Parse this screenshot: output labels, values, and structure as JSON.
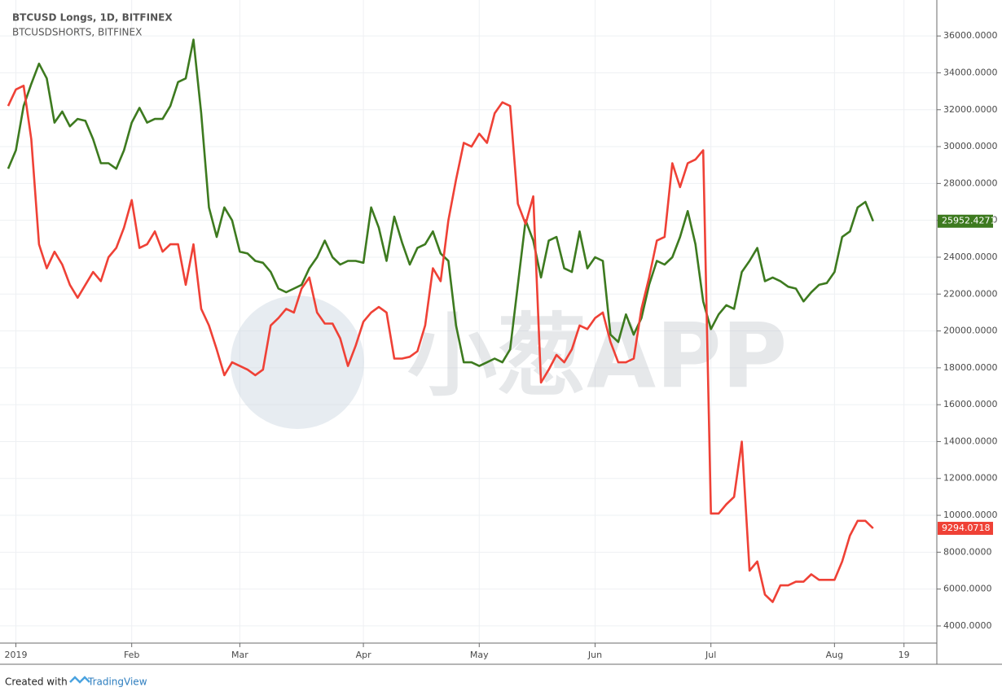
{
  "chart_data": {
    "type": "line",
    "watermark": "小葱APP",
    "footer": {
      "prefix": "Created with",
      "brand": "TradingView"
    },
    "categories": [
      null,
      "2019",
      null,
      null,
      null,
      null,
      null,
      null,
      null,
      null,
      null,
      null,
      null,
      null,
      null,
      null,
      "Feb",
      null,
      null,
      null,
      null,
      null,
      null,
      null,
      null,
      null,
      null,
      null,
      null,
      null,
      "Mar",
      null,
      null,
      null,
      null,
      null,
      null,
      null,
      null,
      null,
      null,
      null,
      null,
      null,
      null,
      null,
      "Apr",
      null,
      null,
      null,
      null,
      null,
      null,
      null,
      null,
      null,
      null,
      null,
      null,
      null,
      null,
      "May",
      null,
      null,
      null,
      null,
      null,
      null,
      null,
      null,
      null,
      null,
      null,
      null,
      null,
      null,
      "Jun",
      null,
      null,
      null,
      null,
      null,
      null,
      null,
      null,
      null,
      null,
      null,
      null,
      null,
      null,
      "Jul",
      null,
      null,
      null,
      null,
      null,
      null,
      null,
      null,
      null,
      null,
      null,
      null,
      null,
      null,
      null,
      "Aug",
      null,
      null,
      null,
      null,
      null,
      null,
      null,
      null,
      "19",
      null,
      null,
      null
    ],
    "series": [
      {
        "name": "BTCUSD Longs, 1D, BITFINEX",
        "color": "#3d7a1f",
        "values": [
          28800,
          29800,
          32200,
          33400,
          34500,
          33700,
          31300,
          31900,
          31100,
          31500,
          31400,
          30400,
          29100,
          29100,
          28800,
          29800,
          31300,
          32100,
          31300,
          31500,
          31500,
          32200,
          33500,
          33700,
          35800,
          31800,
          26700,
          25100,
          26700,
          26000,
          24300,
          24200,
          23800,
          23700,
          23200,
          22300,
          22100,
          22300,
          22500,
          23400,
          24000,
          24900,
          24000,
          23600,
          23800,
          23800,
          23700,
          26700,
          25600,
          23800,
          26200,
          24800,
          23600,
          24500,
          24700,
          25400,
          24200,
          23800,
          20300,
          18300,
          18300,
          18100,
          18300,
          18500,
          18300,
          19000,
          22500,
          26000,
          24900,
          22900,
          24900,
          25100,
          23400,
          23200,
          25400,
          23400,
          24000,
          23800,
          19800,
          19400,
          20900,
          19800,
          20700,
          22500,
          23800,
          23600,
          24000,
          25100,
          26500,
          24700,
          21600,
          20100,
          20900,
          21400,
          21200,
          23200,
          23800,
          24500,
          22700,
          22900,
          22700,
          22400,
          22300,
          21600,
          22100,
          22500,
          22600,
          23200,
          25100,
          25400,
          26700,
          27000,
          25952.4271,
          null,
          null,
          null,
          null,
          null,
          null,
          null
        ]
      },
      {
        "name": "BTCUSDSHORTS, BITFINEX",
        "color": "#ef4136",
        "values": [
          32200,
          33100,
          33300,
          30400,
          24700,
          23400,
          24300,
          23600,
          22500,
          21800,
          22500,
          23200,
          22700,
          24000,
          24500,
          25600,
          27100,
          24500,
          24700,
          25400,
          24300,
          24700,
          24700,
          22500,
          24700,
          21200,
          20300,
          19000,
          17600,
          18300,
          18100,
          17900,
          17600,
          17900,
          20300,
          20700,
          21200,
          21000,
          22300,
          22900,
          21000,
          20400,
          20400,
          19600,
          18100,
          19200,
          20500,
          21000,
          21300,
          21000,
          18500,
          18500,
          18600,
          18900,
          20300,
          23400,
          22700,
          26000,
          28200,
          30200,
          30000,
          30700,
          30200,
          31800,
          32400,
          32200,
          26900,
          25800,
          27300,
          17200,
          17900,
          18700,
          18300,
          19000,
          20300,
          20100,
          20700,
          21000,
          19400,
          18300,
          18300,
          18500,
          21200,
          22900,
          24900,
          25100,
          29100,
          27800,
          29100,
          29300,
          29800,
          10100,
          10100,
          10600,
          11000,
          14000,
          7000,
          7500,
          5700,
          5300,
          6200,
          6200,
          6400,
          6400,
          6800,
          6500,
          6500,
          6500,
          7500,
          8900,
          9700,
          9700,
          9294.0718,
          null,
          null,
          null,
          null,
          null,
          null,
          null
        ]
      }
    ],
    "ylim": [
      3070,
      37730
    ],
    "yticks": [
      {
        "value": 4000,
        "label": "4000.0000"
      },
      {
        "value": 6000,
        "label": "6000.0000"
      },
      {
        "value": 8000,
        "label": "8000.0000"
      },
      {
        "value": 10000,
        "label": "10000.0000"
      },
      {
        "value": 12000,
        "label": "12000.0000"
      },
      {
        "value": 14000,
        "label": "14000.0000"
      },
      {
        "value": 16000,
        "label": "16000.0000"
      },
      {
        "value": 18000,
        "label": "18000.0000"
      },
      {
        "value": 20000,
        "label": "20000.0000"
      },
      {
        "value": 22000,
        "label": "22000.0000"
      },
      {
        "value": 24000,
        "label": "24000.0000"
      },
      {
        "value": 26000,
        "label": "26000.0000"
      },
      {
        "value": 28000,
        "label": "28000.0000"
      },
      {
        "value": 30000,
        "label": "30000.0000"
      },
      {
        "value": 32000,
        "label": "32000.0000"
      },
      {
        "value": 34000,
        "label": "34000.0000"
      },
      {
        "value": 36000,
        "label": "36000.0000"
      }
    ],
    "grid": true
  }
}
